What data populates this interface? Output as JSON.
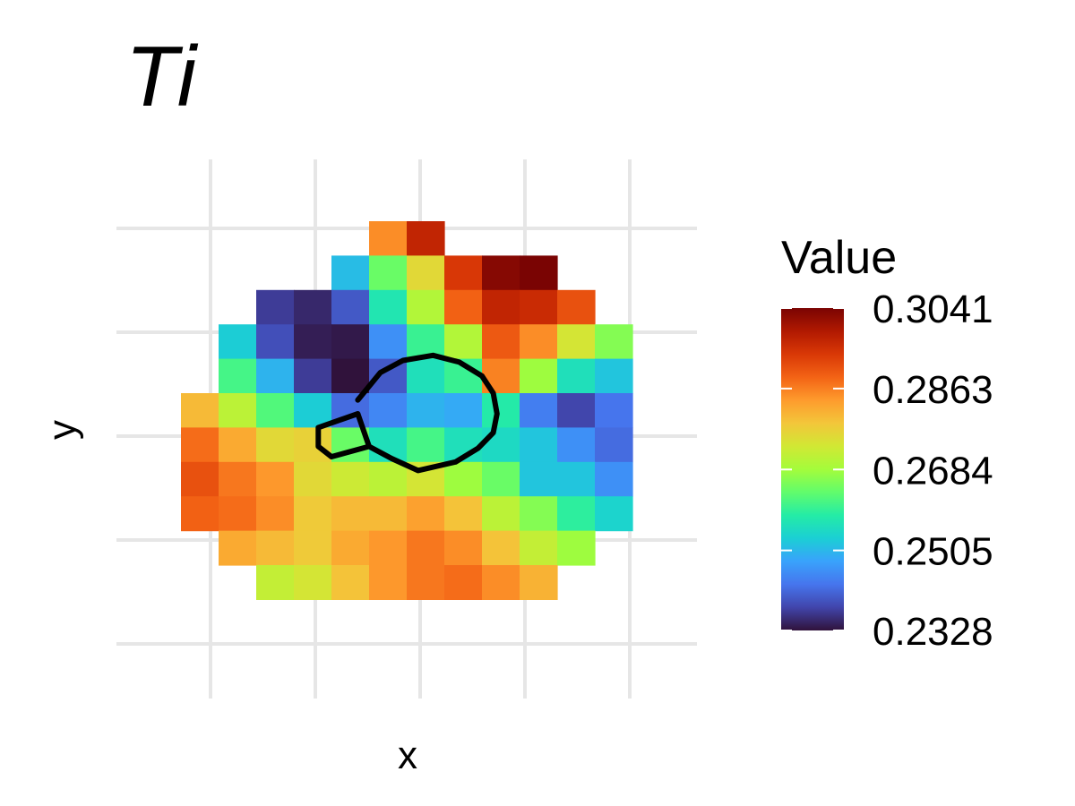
{
  "chart_data": {
    "type": "heatmap",
    "title": "Ti",
    "xlabel": "x",
    "ylabel": "y",
    "grid": true,
    "legend_position": "right",
    "legend": {
      "title": "Value",
      "min": 0.2328,
      "max": 0.3041,
      "breaks": [
        "0.3041",
        "0.2863",
        "0.2684",
        "0.2505",
        "0.2328"
      ],
      "palette": "turbo"
    },
    "colormap": [
      "#30123b",
      "#4145ab",
      "#4675ed",
      "#39a2fc",
      "#1bcfd4",
      "#24eca6",
      "#61fc6c",
      "#a4fc3b",
      "#d1e834",
      "#f3c63a",
      "#fe9b2d",
      "#f36315",
      "#d93806",
      "#b11901",
      "#7a0403"
    ],
    "columns": 12,
    "rows": 11,
    "cells": [
      [
        null,
        null,
        null,
        null,
        null,
        0.285,
        0.297,
        null,
        null,
        null,
        null,
        null
      ],
      [
        null,
        null,
        null,
        null,
        0.251,
        0.264,
        0.276,
        0.294,
        0.303,
        0.3041,
        null,
        null
      ],
      [
        null,
        null,
        0.237,
        0.235,
        0.24,
        0.257,
        0.27,
        0.289,
        0.297,
        0.296,
        0.291,
        null
      ],
      [
        null,
        0.253,
        0.239,
        0.234,
        0.2335,
        0.246,
        0.26,
        0.27,
        0.29,
        0.285,
        0.274,
        0.266
      ],
      [
        null,
        0.261,
        0.25,
        0.237,
        0.2328,
        0.24,
        0.256,
        0.26,
        0.286,
        0.268,
        0.256,
        0.252
      ],
      [
        0.28,
        0.271,
        0.262,
        0.253,
        0.242,
        0.245,
        0.25,
        0.249,
        0.258,
        0.244,
        0.238,
        0.243
      ],
      [
        0.288,
        0.282,
        0.276,
        0.277,
        0.264,
        0.256,
        0.261,
        0.256,
        0.255,
        0.252,
        0.246,
        0.242
      ],
      [
        0.291,
        0.287,
        0.284,
        0.276,
        0.273,
        0.271,
        0.274,
        0.268,
        0.264,
        0.252,
        0.252,
        0.246
      ],
      [
        0.289,
        0.288,
        0.285,
        0.278,
        0.28,
        0.28,
        0.283,
        0.279,
        0.271,
        0.266,
        0.259,
        0.254
      ],
      [
        null,
        0.282,
        0.28,
        0.278,
        0.282,
        0.284,
        0.287,
        0.285,
        0.279,
        0.272,
        0.268,
        null
      ],
      [
        null,
        null,
        0.272,
        0.274,
        0.279,
        0.284,
        0.287,
        0.288,
        0.285,
        0.281,
        null,
        null
      ]
    ],
    "outline": [
      [
        4.7,
        5.2
      ],
      [
        5.3,
        4.4
      ],
      [
        5.9,
        4.05
      ],
      [
        6.7,
        3.9
      ],
      [
        7.4,
        4.1
      ],
      [
        8.0,
        4.5
      ],
      [
        8.3,
        5.0
      ],
      [
        8.4,
        5.6
      ],
      [
        8.3,
        6.15
      ],
      [
        7.9,
        6.6
      ],
      [
        7.3,
        7.0
      ],
      [
        6.3,
        7.25
      ],
      [
        5.6,
        6.9
      ],
      [
        5.0,
        6.55
      ],
      [
        4.0,
        6.85
      ],
      [
        3.65,
        6.55
      ],
      [
        3.65,
        6.0
      ],
      [
        4.7,
        5.6
      ],
      [
        5.0,
        6.55
      ]
    ]
  }
}
